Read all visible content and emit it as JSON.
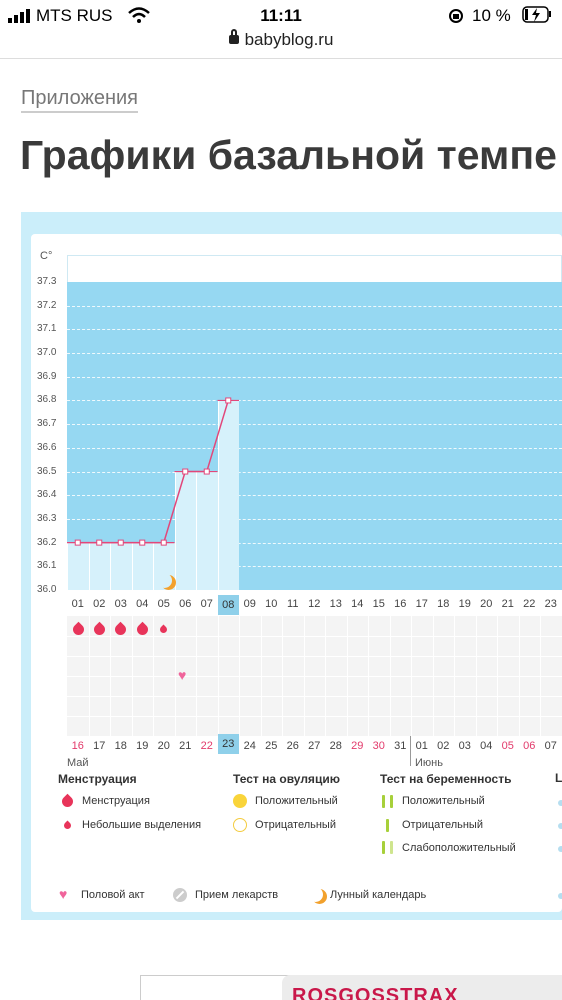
{
  "status_bar": {
    "carrier": "MTS RUS",
    "time": "11:11",
    "battery": "10 %"
  },
  "browser": {
    "url": "babyblog.ru"
  },
  "page": {
    "category": "Приложения",
    "title": "Графики базальной темпе"
  },
  "chart": {
    "unit": "C°",
    "y_ticks": [
      "37.3",
      "37.2",
      "37.1",
      "37.0",
      "36.9",
      "36.8",
      "36.7",
      "36.6",
      "36.5",
      "36.4",
      "36.3",
      "36.2",
      "36.1",
      "36.0"
    ],
    "cycle_days": [
      "01",
      "02",
      "03",
      "04",
      "05",
      "06",
      "07",
      "08",
      "09",
      "10",
      "11",
      "12",
      "13",
      "14",
      "15",
      "16",
      "17",
      "18",
      "19",
      "20",
      "21",
      "22",
      "23"
    ],
    "today_index": 7,
    "dates": [
      "16",
      "17",
      "18",
      "19",
      "20",
      "21",
      "22",
      "23",
      "24",
      "25",
      "26",
      "27",
      "28",
      "29",
      "30",
      "31",
      "01",
      "02",
      "03",
      "04",
      "05",
      "06",
      "07"
    ],
    "red_dates": [
      0,
      6,
      13,
      14,
      20,
      21
    ],
    "month_may": "Май",
    "month_june": "Июнь"
  },
  "chart_data": {
    "type": "line",
    "x": [
      "01",
      "02",
      "03",
      "04",
      "05",
      "06",
      "07",
      "08"
    ],
    "y": [
      36.2,
      36.2,
      36.2,
      36.2,
      36.2,
      36.5,
      36.5,
      36.8
    ],
    "ylabel": "C°",
    "ylim": [
      36.0,
      37.3
    ],
    "grid": true
  },
  "legend": {
    "menstruation": {
      "title": "Менструация",
      "items": [
        "Менструация",
        "Небольшие выделения"
      ]
    },
    "ovulation": {
      "title": "Тест на овуляцию",
      "items": [
        "Положительный",
        "Отрицательный"
      ]
    },
    "pregnancy": {
      "title": "Тест на беременность",
      "items": [
        "Положительный",
        "Отрицательный",
        "Слабоположительный"
      ]
    },
    "extra_title_partial": "L",
    "bottom": [
      "Половой акт",
      "Прием лекарств",
      "Лунный календарь"
    ]
  },
  "ad": {
    "text": "ROSGOSSTRAX"
  }
}
